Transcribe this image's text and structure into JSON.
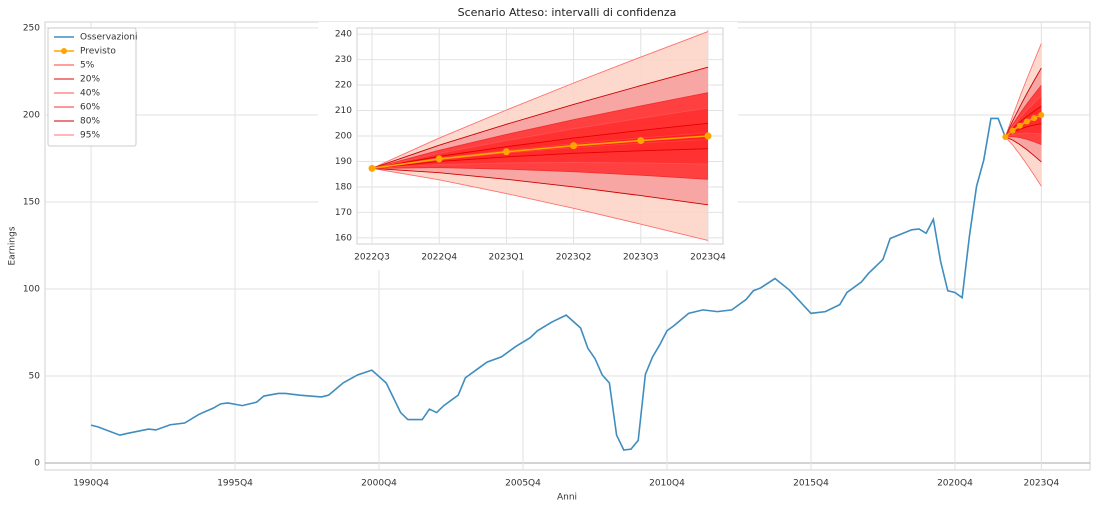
{
  "chart_data": [
    {
      "type": "line",
      "title": "Scenario Atteso: intervalli di confidenza",
      "xlabel": "Anni",
      "ylabel": "Earnings",
      "xlim": [
        1989.15,
        2025.44
      ],
      "ylim": [
        -4,
        253.4
      ],
      "xticks": [
        {
          "value": 1990.75,
          "label": "1990Q4"
        },
        {
          "value": 1995.75,
          "label": "1995Q4"
        },
        {
          "value": 2000.75,
          "label": "2000Q4"
        },
        {
          "value": 2005.75,
          "label": "2005Q4"
        },
        {
          "value": 2010.75,
          "label": "2010Q4"
        },
        {
          "value": 2015.75,
          "label": "2015Q4"
        },
        {
          "value": 2020.75,
          "label": "2020Q4"
        },
        {
          "value": 2023.75,
          "label": "2023Q4"
        }
      ],
      "yticks": [
        0,
        50,
        100,
        150,
        200,
        250
      ],
      "grid": true,
      "legend": "upper left",
      "series": [
        {
          "name": "Osservazioni",
          "color": "#3f8dbf",
          "x": [
            1990.75,
            1991.0,
            1991.75,
            1992.0,
            1992.75,
            1993.0,
            1993.5,
            1994.0,
            1994.5,
            1995.0,
            1995.25,
            1995.5,
            1996.0,
            1996.5,
            1996.75,
            1997.25,
            1997.5,
            1998.0,
            1998.75,
            1999.0,
            1999.5,
            2000.0,
            2000.5,
            2001.0,
            2001.5,
            2001.75,
            2002.25,
            2002.5,
            2002.75,
            2003.0,
            2003.5,
            2003.75,
            2004.25,
            2004.5,
            2005.0,
            2005.5,
            2006.0,
            2006.25,
            2006.75,
            2007.25,
            2007.75,
            2008.0,
            2008.25,
            2008.5,
            2008.75,
            2009.0,
            2009.25,
            2009.5,
            2009.75,
            2010.0,
            2010.25,
            2010.5,
            2010.75,
            2011.0,
            2011.5,
            2011.75,
            2012.0,
            2012.5,
            2013.0,
            2013.5,
            2013.75,
            2014.0,
            2014.5,
            2015.0,
            2015.75,
            2016.25,
            2016.75,
            2017.0,
            2017.5,
            2017.75,
            2018.25,
            2018.5,
            2019.25,
            2019.5,
            2019.75,
            2020.0,
            2020.25,
            2020.5,
            2020.75,
            2021.0,
            2021.25,
            2021.5,
            2021.75,
            2022.0,
            2022.25,
            2022.5
          ],
          "values": [
            21.8,
            20.7,
            16,
            17,
            19.5,
            19,
            22,
            23,
            28,
            31.6,
            34,
            34.5,
            33,
            35,
            38.5,
            40,
            40,
            39,
            38,
            39,
            46,
            50.6,
            53.4,
            46,
            29,
            25,
            25,
            31,
            29,
            33,
            39,
            49,
            55,
            58,
            61,
            67,
            72,
            76,
            81,
            85,
            77.6,
            66,
            60,
            50.6,
            46,
            16,
            7.5,
            8,
            13,
            51,
            61,
            68,
            76,
            79,
            86,
            87,
            88,
            87,
            88,
            94,
            99,
            100.6,
            106,
            99.4,
            86,
            87,
            91,
            98,
            104,
            109,
            117,
            129,
            134,
            134.5,
            132,
            140,
            116,
            99,
            98,
            95,
            130,
            159,
            174,
            198,
            198,
            187.3
          ]
        },
        {
          "name": "Previsto",
          "color": "#ffa500",
          "marker": "o",
          "x": [
            2022.5,
            2022.75,
            2023.0,
            2023.25,
            2023.5,
            2023.75
          ],
          "values": [
            187.3,
            191,
            193.8,
            196.2,
            198.2,
            200
          ]
        }
      ],
      "bands": [
        {
          "name": "5%",
          "color": "#ff4040",
          "fill": "#ff2020",
          "x": [
            2022.5,
            2022.75,
            2023.0,
            2023.25,
            2023.5,
            2023.75
          ],
          "lower": [
            187.3,
            190.7,
            193.3,
            195.4,
            197.2,
            198.7
          ],
          "upper": [
            187.3,
            191.3,
            194.3,
            197.0,
            199.2,
            201.3
          ]
        },
        {
          "name": "20%",
          "color": "#e60000",
          "fill": "#ff2a2a",
          "x": [
            2022.5,
            2022.75,
            2023.0,
            2023.25,
            2023.5,
            2023.75
          ],
          "lower": [
            187.3,
            190,
            191.8,
            193.2,
            194.2,
            195
          ],
          "upper": [
            187.3,
            192,
            195.8,
            199.2,
            202.2,
            205
          ]
        },
        {
          "name": "40%",
          "color": "#ff5050",
          "fill": "#ff3030",
          "x": [
            2022.5,
            2022.75,
            2023.0,
            2023.25,
            2023.5,
            2023.75
          ],
          "lower": [
            187.3,
            188.8,
            189.4,
            189.6,
            189.4,
            189.0
          ],
          "upper": [
            187.3,
            193.2,
            198.2,
            202.8,
            207.0,
            211.0
          ]
        },
        {
          "name": "60%",
          "color": "#f03030",
          "fill": "#ff3535",
          "x": [
            2022.5,
            2022.75,
            2023.0,
            2023.25,
            2023.5,
            2023.75
          ],
          "lower": [
            187.3,
            187.6,
            187.0,
            186.0,
            184.6,
            183.0
          ],
          "upper": [
            187.3,
            194.4,
            200.6,
            206.4,
            211.8,
            217.0
          ]
        },
        {
          "name": "80%",
          "color": "#cc0000",
          "fill": "#f7a0a0",
          "x": [
            2022.5,
            2022.75,
            2023.0,
            2023.25,
            2023.5,
            2023.75
          ],
          "lower": [
            187.3,
            185.6,
            183.0,
            180.0,
            176.6,
            173.0
          ],
          "upper": [
            187.3,
            196.4,
            204.6,
            212.4,
            219.8,
            227.0
          ]
        },
        {
          "name": "95%",
          "color": "#ff7070",
          "fill": "#fdd5c8",
          "x": [
            2022.5,
            2022.75,
            2023.0,
            2023.25,
            2023.5,
            2023.75
          ],
          "lower": [
            187.3,
            182.8,
            177.4,
            171.6,
            165.4,
            159.0
          ],
          "upper": [
            187.3,
            199.2,
            210.2,
            220.8,
            231.0,
            241.0
          ]
        }
      ]
    },
    {
      "type": "line",
      "categories": [
        "2022Q3",
        "2022Q4",
        "2023Q1",
        "2023Q2",
        "2023Q3",
        "2023Q4"
      ],
      "ylim": [
        157.6,
        242.4
      ],
      "yticks": [
        160,
        170,
        180,
        190,
        200,
        210,
        220,
        230,
        240
      ],
      "grid": true,
      "series": [
        {
          "color": "#ffa500",
          "marker": "o",
          "values": [
            187.3,
            191,
            193.8,
            196.2,
            198.2,
            200
          ]
        }
      ],
      "bands": [
        {
          "color": "#ff4040",
          "fill": "#ff2020",
          "lower": [
            187.3,
            190.7,
            193.3,
            195.4,
            197.2,
            198.7
          ],
          "upper": [
            187.3,
            191.3,
            194.3,
            197.0,
            199.2,
            201.3
          ]
        },
        {
          "color": "#e60000",
          "fill": "#ff2a2a",
          "lower": [
            187.3,
            190,
            191.8,
            193.2,
            194.2,
            195
          ],
          "upper": [
            187.3,
            192,
            195.8,
            199.2,
            202.2,
            205
          ]
        },
        {
          "color": "#ff5050",
          "fill": "#ff3030",
          "lower": [
            187.3,
            188.8,
            189.4,
            189.6,
            189.4,
            189.0
          ],
          "upper": [
            187.3,
            193.2,
            198.2,
            202.8,
            207.0,
            211.0
          ]
        },
        {
          "color": "#f03030",
          "fill": "#ff3535",
          "lower": [
            187.3,
            187.6,
            187.0,
            186.0,
            184.6,
            183.0
          ],
          "upper": [
            187.3,
            194.4,
            200.6,
            206.4,
            211.8,
            217.0
          ]
        },
        {
          "color": "#cc0000",
          "fill": "#f7a0a0",
          "lower": [
            187.3,
            185.6,
            183.0,
            180.0,
            176.6,
            173.0
          ],
          "upper": [
            187.3,
            196.4,
            204.6,
            212.4,
            219.8,
            227.0
          ]
        },
        {
          "color": "#ff7070",
          "fill": "#fdd5c8",
          "lower": [
            187.3,
            182.8,
            177.4,
            171.6,
            165.4,
            159.0
          ],
          "upper": [
            187.3,
            199.2,
            210.2,
            220.8,
            231.0,
            241.0
          ]
        }
      ]
    }
  ]
}
